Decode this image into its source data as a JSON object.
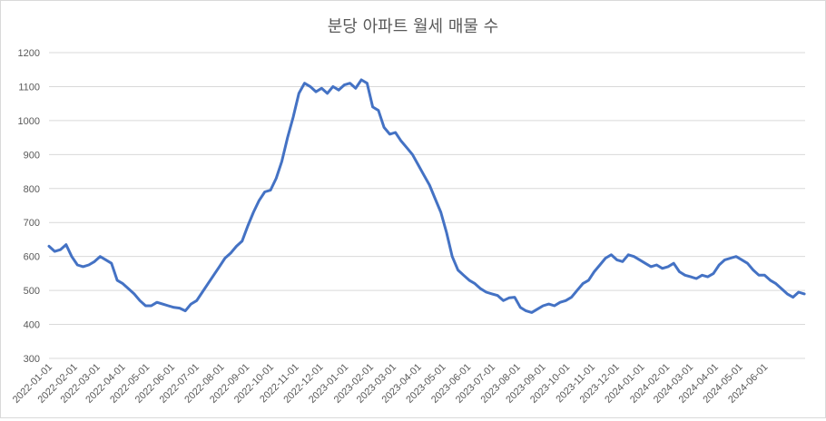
{
  "chart_data": {
    "type": "line",
    "title": "분당 아파트 월세 매물 수",
    "xlabel": "",
    "ylabel": "",
    "ylim": [
      300,
      1200
    ],
    "yticks": [
      300,
      400,
      500,
      600,
      700,
      800,
      900,
      1000,
      1100,
      1200
    ],
    "grid": "horizontal",
    "legend": "none",
    "line_color": "#4472C4",
    "x_tick_labels": [
      "2022-01-01",
      "2022-02-01",
      "2022-03-01",
      "2022-04-01",
      "2022-05-01",
      "2022-06-01",
      "2022-07-01",
      "2022-08-01",
      "2022-09-01",
      "2022-10-01",
      "2022-11-01",
      "2022-12-01",
      "2023-01-01",
      "2023-02-01",
      "2023-03-01",
      "2023-04-01",
      "2023-05-01",
      "2023-06-01",
      "2023-07-01",
      "2023-08-01",
      "2023-09-01",
      "2023-10-01",
      "2023-11-01",
      "2023-12-01",
      "2024-01-01",
      "2024-02-01",
      "2024-03-01",
      "2024-04-01",
      "2024-05-01",
      "2024-06-01"
    ],
    "series": [
      {
        "points": [
          [
            "2022-01-01",
            630
          ],
          [
            "2022-01-08",
            615
          ],
          [
            "2022-01-15",
            620
          ],
          [
            "2022-01-22",
            635
          ],
          [
            "2022-01-29",
            600
          ],
          [
            "2022-02-05",
            575
          ],
          [
            "2022-02-12",
            570
          ],
          [
            "2022-02-19",
            575
          ],
          [
            "2022-02-26",
            585
          ],
          [
            "2022-03-05",
            600
          ],
          [
            "2022-03-12",
            590
          ],
          [
            "2022-03-19",
            580
          ],
          [
            "2022-03-26",
            530
          ],
          [
            "2022-04-02",
            520
          ],
          [
            "2022-04-09",
            505
          ],
          [
            "2022-04-16",
            490
          ],
          [
            "2022-04-23",
            470
          ],
          [
            "2022-04-30",
            455
          ],
          [
            "2022-05-07",
            455
          ],
          [
            "2022-05-14",
            465
          ],
          [
            "2022-05-21",
            460
          ],
          [
            "2022-05-28",
            455
          ],
          [
            "2022-06-04",
            450
          ],
          [
            "2022-06-11",
            448
          ],
          [
            "2022-06-18",
            440
          ],
          [
            "2022-06-25",
            460
          ],
          [
            "2022-07-02",
            470
          ],
          [
            "2022-07-09",
            495
          ],
          [
            "2022-07-16",
            520
          ],
          [
            "2022-07-23",
            545
          ],
          [
            "2022-07-30",
            570
          ],
          [
            "2022-08-06",
            595
          ],
          [
            "2022-08-13",
            610
          ],
          [
            "2022-08-20",
            630
          ],
          [
            "2022-08-27",
            645
          ],
          [
            "2022-09-03",
            690
          ],
          [
            "2022-09-10",
            730
          ],
          [
            "2022-09-17",
            765
          ],
          [
            "2022-09-24",
            790
          ],
          [
            "2022-10-01",
            795
          ],
          [
            "2022-10-08",
            830
          ],
          [
            "2022-10-15",
            880
          ],
          [
            "2022-10-22",
            950
          ],
          [
            "2022-10-29",
            1010
          ],
          [
            "2022-11-05",
            1080
          ],
          [
            "2022-11-12",
            1110
          ],
          [
            "2022-11-19",
            1100
          ],
          [
            "2022-11-26",
            1085
          ],
          [
            "2022-12-03",
            1095
          ],
          [
            "2022-12-10",
            1080
          ],
          [
            "2022-12-17",
            1100
          ],
          [
            "2022-12-24",
            1090
          ],
          [
            "2022-12-31",
            1105
          ],
          [
            "2023-01-07",
            1110
          ],
          [
            "2023-01-14",
            1095
          ],
          [
            "2023-01-21",
            1120
          ],
          [
            "2023-01-28",
            1110
          ],
          [
            "2023-02-04",
            1040
          ],
          [
            "2023-02-11",
            1030
          ],
          [
            "2023-02-18",
            980
          ],
          [
            "2023-02-25",
            960
          ],
          [
            "2023-03-04",
            965
          ],
          [
            "2023-03-11",
            940
          ],
          [
            "2023-03-18",
            920
          ],
          [
            "2023-03-25",
            900
          ],
          [
            "2023-04-01",
            870
          ],
          [
            "2023-04-08",
            840
          ],
          [
            "2023-04-15",
            810
          ],
          [
            "2023-04-22",
            770
          ],
          [
            "2023-04-29",
            730
          ],
          [
            "2023-05-06",
            670
          ],
          [
            "2023-05-13",
            600
          ],
          [
            "2023-05-20",
            560
          ],
          [
            "2023-05-27",
            545
          ],
          [
            "2023-06-03",
            530
          ],
          [
            "2023-06-10",
            520
          ],
          [
            "2023-06-17",
            505
          ],
          [
            "2023-06-24",
            495
          ],
          [
            "2023-07-01",
            490
          ],
          [
            "2023-07-08",
            485
          ],
          [
            "2023-07-15",
            470
          ],
          [
            "2023-07-22",
            478
          ],
          [
            "2023-07-29",
            480
          ],
          [
            "2023-08-05",
            450
          ],
          [
            "2023-08-12",
            440
          ],
          [
            "2023-08-19",
            435
          ],
          [
            "2023-08-26",
            445
          ],
          [
            "2023-09-02",
            455
          ],
          [
            "2023-09-09",
            460
          ],
          [
            "2023-09-16",
            455
          ],
          [
            "2023-09-23",
            465
          ],
          [
            "2023-09-30",
            470
          ],
          [
            "2023-10-07",
            480
          ],
          [
            "2023-10-14",
            500
          ],
          [
            "2023-10-21",
            520
          ],
          [
            "2023-10-28",
            530
          ],
          [
            "2023-11-04",
            555
          ],
          [
            "2023-11-11",
            575
          ],
          [
            "2023-11-18",
            595
          ],
          [
            "2023-11-25",
            605
          ],
          [
            "2023-12-02",
            590
          ],
          [
            "2023-12-09",
            585
          ],
          [
            "2023-12-16",
            605
          ],
          [
            "2023-12-23",
            600
          ],
          [
            "2023-12-30",
            590
          ],
          [
            "2024-01-06",
            580
          ],
          [
            "2024-01-13",
            570
          ],
          [
            "2024-01-20",
            575
          ],
          [
            "2024-01-27",
            565
          ],
          [
            "2024-02-03",
            570
          ],
          [
            "2024-02-10",
            580
          ],
          [
            "2024-02-17",
            555
          ],
          [
            "2024-02-24",
            545
          ],
          [
            "2024-03-02",
            540
          ],
          [
            "2024-03-09",
            535
          ],
          [
            "2024-03-16",
            545
          ],
          [
            "2024-03-23",
            540
          ],
          [
            "2024-03-30",
            550
          ],
          [
            "2024-04-06",
            575
          ],
          [
            "2024-04-13",
            590
          ],
          [
            "2024-04-20",
            595
          ],
          [
            "2024-04-27",
            600
          ],
          [
            "2024-05-04",
            590
          ],
          [
            "2024-05-11",
            580
          ],
          [
            "2024-05-18",
            560
          ],
          [
            "2024-05-25",
            545
          ],
          [
            "2024-06-01",
            545
          ],
          [
            "2024-06-08",
            530
          ],
          [
            "2024-06-15",
            520
          ],
          [
            "2024-06-22",
            505
          ],
          [
            "2024-06-29",
            490
          ],
          [
            "2024-07-06",
            480
          ],
          [
            "2024-07-13",
            495
          ],
          [
            "2024-07-20",
            490
          ]
        ]
      }
    ]
  }
}
